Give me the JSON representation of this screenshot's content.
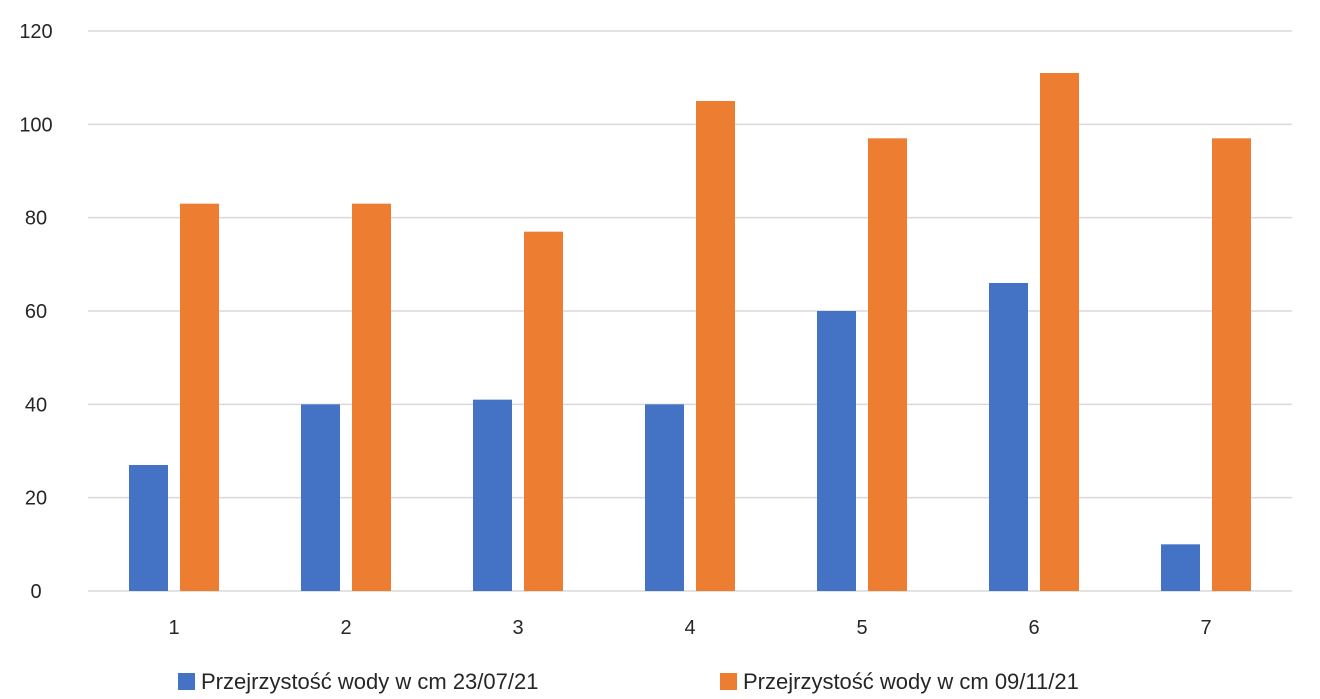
{
  "chart_data": {
    "type": "bar",
    "categories": [
      "1",
      "2",
      "3",
      "4",
      "5",
      "6",
      "7"
    ],
    "series": [
      {
        "name": "Przejrzystość wody w cm 23/07/21",
        "color": "#4472C4",
        "values": [
          27,
          40,
          41,
          40,
          60,
          66,
          10
        ]
      },
      {
        "name": "Przejrzystość wody w cm 09/11/21",
        "color": "#ED7D31",
        "values": [
          83,
          83,
          77,
          105,
          97,
          111,
          97
        ]
      }
    ],
    "ylim": [
      0,
      120
    ],
    "yticks": [
      0,
      20,
      40,
      60,
      80,
      100,
      120
    ],
    "grid": true,
    "gridColor": "#D9D9D9",
    "legend": "bottom"
  }
}
